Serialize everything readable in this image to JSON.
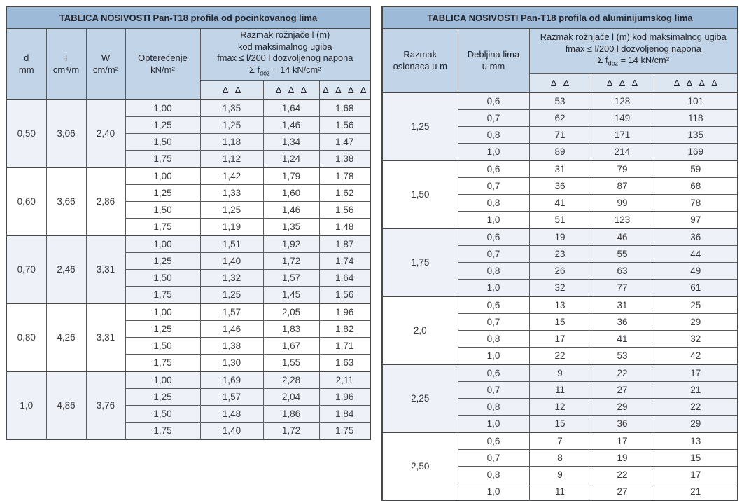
{
  "colors": {
    "title_bg": "#9dbbd9",
    "header_bg": "#c2d5e8",
    "delta_bg": "#dde7f2",
    "shade_bg": "#eef2f8",
    "border_dark": "#47484a",
    "border_mid": "#5a5b5e",
    "border_light": "#8a8c8f",
    "text_dark": "#24242a",
    "text_body": "#39393d"
  },
  "left_table": {
    "title": "TABLICA NOSIVOSTI Pan-T18 profila od pocinkovanog lima",
    "columns": [
      {
        "line1": "d",
        "line2": "mm"
      },
      {
        "line1": "I",
        "line2": "cm⁴/m"
      },
      {
        "line1": "W",
        "line2": "cm/m²"
      },
      {
        "line1": "Opterećenje",
        "line2": "kN/m²"
      }
    ],
    "span_header": {
      "lines": [
        "Razmak rožnjače l (m)",
        "kod maksimalnog ugiba",
        "fmax ≤ l/200 l dozvoljenog napona"
      ],
      "sigma": {
        "prefix": "Σ f",
        "sub": "doz",
        "suffix": " = 14 kN/cm²"
      }
    },
    "delta_headers": [
      "Δ Δ",
      "Δ Δ Δ",
      "Δ Δ Δ Δ"
    ],
    "groups": [
      {
        "d": "0,50",
        "i": "3,06",
        "w": "2,40",
        "rows": [
          [
            "1,00",
            "1,35",
            "1,64",
            "1,68"
          ],
          [
            "1,25",
            "1,25",
            "1,46",
            "1,56"
          ],
          [
            "1,50",
            "1,18",
            "1,34",
            "1,47"
          ],
          [
            "1,75",
            "1,12",
            "1,24",
            "1,38"
          ]
        ]
      },
      {
        "d": "0,60",
        "i": "3,66",
        "w": "2,86",
        "rows": [
          [
            "1,00",
            "1,42",
            "1,79",
            "1,78"
          ],
          [
            "1,25",
            "1,33",
            "1,60",
            "1,62"
          ],
          [
            "1,50",
            "1,25",
            "1,46",
            "1,56"
          ],
          [
            "1,75",
            "1,19",
            "1,35",
            "1,48"
          ]
        ]
      },
      {
        "d": "0,70",
        "i": "2,46",
        "w": "3,31",
        "rows": [
          [
            "1,00",
            "1,51",
            "1,92",
            "1,87"
          ],
          [
            "1,25",
            "1,40",
            "1,72",
            "1,74"
          ],
          [
            "1,50",
            "1,32",
            "1,57",
            "1,64"
          ],
          [
            "1,75",
            "1,25",
            "1,45",
            "1,56"
          ]
        ]
      },
      {
        "d": "0,80",
        "i": "4,26",
        "w": "3,31",
        "rows": [
          [
            "1,00",
            "1,57",
            "2,05",
            "1,96"
          ],
          [
            "1,25",
            "1,46",
            "1,83",
            "1,82"
          ],
          [
            "1,50",
            "1,38",
            "1,67",
            "1,71"
          ],
          [
            "1,75",
            "1,30",
            "1,55",
            "1,63"
          ]
        ]
      },
      {
        "d": "1,0",
        "i": "4,86",
        "w": "3,76",
        "rows": [
          [
            "1,00",
            "1,69",
            "2,28",
            "2,11"
          ],
          [
            "1,25",
            "1,57",
            "2,04",
            "1,96"
          ],
          [
            "1,50",
            "1,48",
            "1,86",
            "1,84"
          ],
          [
            "1,75",
            "1,40",
            "1,72",
            "1,75"
          ]
        ]
      }
    ]
  },
  "right_table": {
    "title": "TABLICA NOSIVOSTI Pan-T18 profila od aluminijumskog lima",
    "columns": [
      {
        "line1": "Razmak",
        "line2": "oslonaca u m"
      },
      {
        "line1": "Debljina lima",
        "line2": "u mm"
      }
    ],
    "span_header": {
      "lines": [
        "Razmak rožnjače l (m) kod maksimalnog ugiba",
        "fmax ≤ l/200 l dozvoljenog napona"
      ],
      "sigma": {
        "prefix": "Σ f",
        "sub": "doz",
        "suffix": " = 14 kN/cm²"
      }
    },
    "delta_headers": [
      "Δ Δ",
      "Δ Δ Δ",
      "Δ Δ Δ Δ"
    ],
    "groups": [
      {
        "razmak": "1,25",
        "rows": [
          [
            "0,6",
            "53",
            "128",
            "101"
          ],
          [
            "0,7",
            "62",
            "149",
            "118"
          ],
          [
            "0,8",
            "71",
            "171",
            "135"
          ],
          [
            "1,0",
            "89",
            "214",
            "169"
          ]
        ]
      },
      {
        "razmak": "1,50",
        "rows": [
          [
            "0,6",
            "31",
            "79",
            "59"
          ],
          [
            "0,7",
            "36",
            "87",
            "68"
          ],
          [
            "0,8",
            "41",
            "99",
            "78"
          ],
          [
            "1,0",
            "51",
            "123",
            "97"
          ]
        ]
      },
      {
        "razmak": "1,75",
        "rows": [
          [
            "0,6",
            "19",
            "46",
            "36"
          ],
          [
            "0,7",
            "23",
            "55",
            "44"
          ],
          [
            "0,8",
            "26",
            "63",
            "49"
          ],
          [
            "1,0",
            "32",
            "77",
            "61"
          ]
        ]
      },
      {
        "razmak": "2,0",
        "rows": [
          [
            "0,6",
            "13",
            "31",
            "25"
          ],
          [
            "0,7",
            "15",
            "36",
            "29"
          ],
          [
            "0,8",
            "17",
            "41",
            "32"
          ],
          [
            "1,0",
            "22",
            "53",
            "42"
          ]
        ]
      },
      {
        "razmak": "2,25",
        "rows": [
          [
            "0,6",
            "9",
            "22",
            "17"
          ],
          [
            "0,7",
            "11",
            "27",
            "21"
          ],
          [
            "0,8",
            "12",
            "29",
            "22"
          ],
          [
            "1,0",
            "15",
            "36",
            "29"
          ]
        ]
      },
      {
        "razmak": "2,50",
        "rows": [
          [
            "0,6",
            "7",
            "17",
            "13"
          ],
          [
            "0,7",
            "8",
            "19",
            "15"
          ],
          [
            "0,8",
            "9",
            "22",
            "17"
          ],
          [
            "1,0",
            "11",
            "27",
            "21"
          ]
        ]
      }
    ]
  }
}
